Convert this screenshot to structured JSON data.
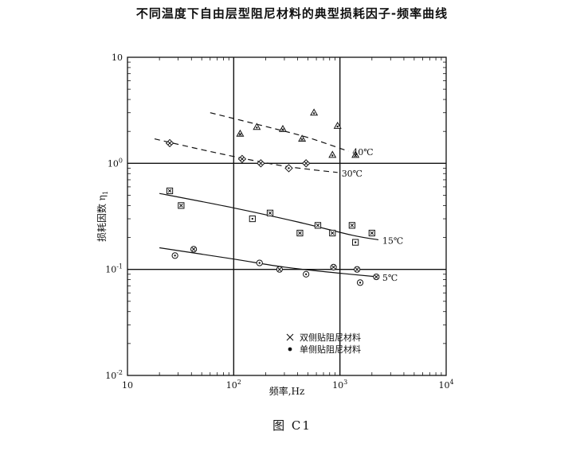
{
  "title": "不同温度下自由层型阻尼材料的典型损耗因子-频率曲线",
  "caption": "图 C1",
  "chart_data": {
    "type": "scatter",
    "xscale": "log",
    "yscale": "log",
    "xlim": [
      10,
      10000
    ],
    "ylim": [
      0.01,
      10
    ],
    "xlabel": "频率,Hz",
    "ylabel": "损耗因数 η",
    "ylabel_subscript": "1",
    "x_ticks": [
      {
        "value": 10,
        "base": "10",
        "exp": ""
      },
      {
        "value": 100,
        "base": "10",
        "exp": "2"
      },
      {
        "value": 1000,
        "base": "10",
        "exp": "3"
      },
      {
        "value": 10000,
        "base": "10",
        "exp": "4"
      }
    ],
    "y_ticks": [
      {
        "value": 10,
        "base": "10",
        "exp": ""
      },
      {
        "value": 1,
        "base": "10",
        "exp": "0"
      },
      {
        "value": 0.1,
        "base": "10",
        "exp": "-1"
      },
      {
        "value": 0.01,
        "base": "10",
        "exp": "-2"
      }
    ],
    "grid_x": [
      100,
      1000
    ],
    "grid_y": [
      1,
      0.1
    ],
    "legend": {
      "placement": "lower-middle",
      "entries": [
        {
          "marker": "cross",
          "label": "双侧贴阻尼材料"
        },
        {
          "marker": "dot",
          "label": "单侧贴阻尼材料"
        }
      ]
    },
    "series": [
      {
        "name": "40℃",
        "marker": "triangle",
        "line": "dashed",
        "fit": {
          "x": [
            60,
            210,
            500,
            1200
          ],
          "y": [
            3.0,
            2.2,
            1.75,
            1.3
          ]
        },
        "points": [
          {
            "x": 115,
            "y": 1.9,
            "side": "double"
          },
          {
            "x": 165,
            "y": 2.2,
            "side": "single"
          },
          {
            "x": 290,
            "y": 2.1,
            "side": "double"
          },
          {
            "x": 440,
            "y": 1.7,
            "side": "double"
          },
          {
            "x": 570,
            "y": 3.0,
            "side": "single"
          },
          {
            "x": 850,
            "y": 1.2,
            "side": "single"
          },
          {
            "x": 950,
            "y": 2.25,
            "side": "single"
          },
          {
            "x": 1400,
            "y": 1.2,
            "side": "double"
          }
        ]
      },
      {
        "name": "30℃",
        "marker": "diamond",
        "line": "dashed",
        "fit": {
          "x": [
            18,
            70,
            250,
            500,
            950
          ],
          "y": [
            1.7,
            1.25,
            0.97,
            0.88,
            0.82
          ]
        },
        "points": [
          {
            "x": 25,
            "y": 1.55,
            "side": "double"
          },
          {
            "x": 120,
            "y": 1.1,
            "side": "double"
          },
          {
            "x": 180,
            "y": 1.0,
            "side": "double"
          },
          {
            "x": 330,
            "y": 0.9,
            "side": "single"
          },
          {
            "x": 480,
            "y": 1.0,
            "side": "double"
          }
        ]
      },
      {
        "name": "15℃",
        "marker": "square",
        "line": "solid",
        "fit": {
          "x": [
            20,
            100,
            400,
            1300,
            2300
          ],
          "y": [
            0.52,
            0.38,
            0.28,
            0.21,
            0.19
          ]
        },
        "points": [
          {
            "x": 25,
            "y": 0.55,
            "side": "double"
          },
          {
            "x": 32,
            "y": 0.4,
            "side": "double"
          },
          {
            "x": 150,
            "y": 0.3,
            "side": "single"
          },
          {
            "x": 220,
            "y": 0.34,
            "side": "double"
          },
          {
            "x": 420,
            "y": 0.22,
            "side": "double"
          },
          {
            "x": 620,
            "y": 0.26,
            "side": "double"
          },
          {
            "x": 850,
            "y": 0.22,
            "side": "double"
          },
          {
            "x": 1300,
            "y": 0.26,
            "side": "double"
          },
          {
            "x": 1400,
            "y": 0.18,
            "side": "single"
          },
          {
            "x": 2000,
            "y": 0.22,
            "side": "double"
          }
        ]
      },
      {
        "name": "5℃",
        "marker": "circle",
        "line": "solid",
        "fit": {
          "x": [
            20,
            100,
            300,
            1000,
            2300
          ],
          "y": [
            0.16,
            0.125,
            0.105,
            0.092,
            0.085
          ]
        },
        "points": [
          {
            "x": 28,
            "y": 0.135,
            "side": "single"
          },
          {
            "x": 42,
            "y": 0.155,
            "side": "double"
          },
          {
            "x": 175,
            "y": 0.115,
            "side": "single"
          },
          {
            "x": 270,
            "y": 0.1,
            "side": "double"
          },
          {
            "x": 480,
            "y": 0.09,
            "side": "single"
          },
          {
            "x": 870,
            "y": 0.105,
            "side": "double"
          },
          {
            "x": 1450,
            "y": 0.1,
            "side": "double"
          },
          {
            "x": 1550,
            "y": 0.075,
            "side": "single"
          },
          {
            "x": 2200,
            "y": 0.085,
            "side": "double"
          }
        ]
      }
    ]
  }
}
